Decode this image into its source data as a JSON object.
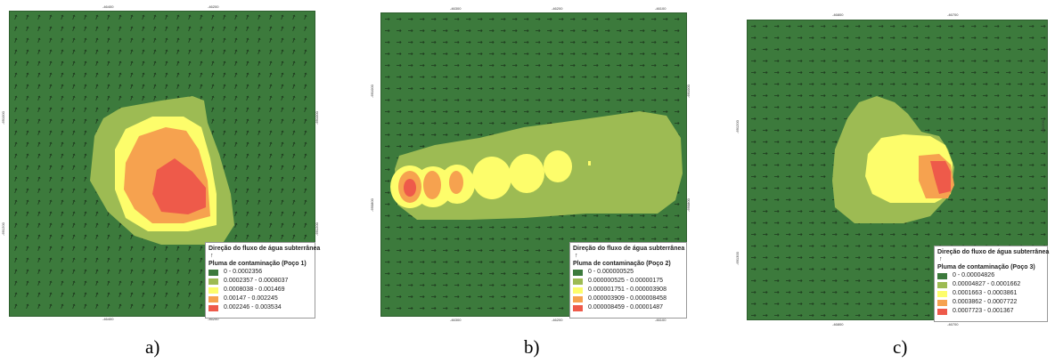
{
  "panels": [
    {
      "caption": "a)",
      "legend_title": "Direção do fluxo de água subterrânea",
      "legend_subtitle": "Pluma de contaminação (Poço 1)",
      "classes": [
        {
          "label": "0 - 0.0002356",
          "color": "#3c7a3c"
        },
        {
          "label": "0.0002357 - 0.0008037",
          "color": "#9dbb53"
        },
        {
          "label": "0.0008038 - 0.001469",
          "color": "#fdfd6b"
        },
        {
          "label": "0.00147 - 0.002245",
          "color": "#f6a24f"
        },
        {
          "label": "0.002246 - 0.003534",
          "color": "#ee5a4a"
        }
      ],
      "top_ticks": [
        "-46400",
        "-46200"
      ],
      "bottom_ticks": [
        "-46400",
        "-46200"
      ],
      "left_ticks": [
        "-691000",
        "-691200"
      ],
      "right_ticks": [
        "-691000",
        "-691200"
      ]
    },
    {
      "caption": "b)",
      "legend_title": "Direção do fluxo de água subterrânea",
      "legend_subtitle": "Pluma de contaminação (Poço 2)",
      "classes": [
        {
          "label": "0 - 0.000000525",
          "color": "#3c7a3c"
        },
        {
          "label": "0.000000525 - 0.00000175",
          "color": "#9dbb53"
        },
        {
          "label": "0.000001751 - 0.000003908",
          "color": "#fdfd6b"
        },
        {
          "label": "0.000003909 - 0.000008458",
          "color": "#f6a24f"
        },
        {
          "label": "0.000008459 - 0.00001487",
          "color": "#ee5a4a"
        }
      ],
      "top_ticks": [
        "-46300",
        "-46200",
        "-46100"
      ],
      "bottom_ticks": [
        "-46300",
        "-46200",
        "-46100"
      ],
      "left_ticks": [
        "-691000",
        "-690800"
      ],
      "right_ticks": [
        "-691000",
        "-690800"
      ]
    },
    {
      "caption": "c)",
      "legend_title": "Direção do fluxo de água subterrânea",
      "legend_subtitle": "Pluma de contaminação (Poço 3)",
      "classes": [
        {
          "label": "0 - 0.00004826",
          "color": "#3c7a3c"
        },
        {
          "label": "0.00004827 - 0.0001662",
          "color": "#9dbb53"
        },
        {
          "label": "0.0001663 - 0.0003861",
          "color": "#fdfd6b"
        },
        {
          "label": "0.0003862 - 0.0007722",
          "color": "#f6a24f"
        },
        {
          "label": "0.0007723 - 0.001367",
          "color": "#ee5a4a"
        }
      ],
      "top_ticks": [
        "-46800",
        "-46700"
      ],
      "bottom_ticks": [
        "-46800",
        "-46700"
      ],
      "left_ticks": [
        "-691200",
        "-691300"
      ],
      "right_ticks": [
        "-691200",
        "-691300"
      ]
    }
  ]
}
